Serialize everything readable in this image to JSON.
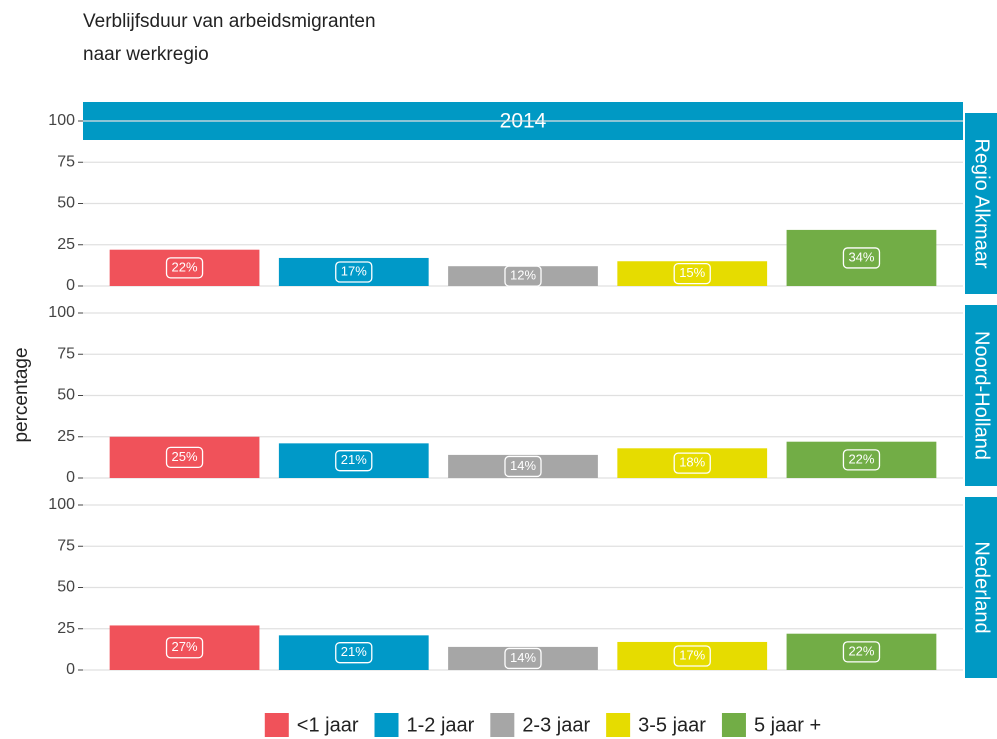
{
  "chart_data": {
    "type": "bar",
    "title": [
      "Verblijfsduur van arbeidsmigranten",
      "naar werkregio"
    ],
    "facet_title": "2014",
    "ylabel": "percentage",
    "categories": [
      "<1 jaar",
      "1-2 jaar",
      "2-3 jaar",
      "3-5 jaar",
      "5 jaar +"
    ],
    "colors": [
      "#f0525a",
      "#0099c8",
      "#a6a6a6",
      "#e6dc00",
      "#72ad46"
    ],
    "strip_color": "#0099c4",
    "ylim": [
      0,
      100
    ],
    "yticks": [
      0,
      25,
      50,
      75,
      100
    ],
    "grid": true,
    "legend": "bottom",
    "panels": [
      {
        "name": "Regio Alkmaar",
        "values": [
          22,
          17,
          12,
          15,
          34
        ],
        "value_labels": [
          "22%",
          "17%",
          "12%",
          "15%",
          "34%"
        ]
      },
      {
        "name": "Noord-Holland",
        "values": [
          25,
          21,
          14,
          18,
          22
        ],
        "value_labels": [
          "25%",
          "21%",
          "14%",
          "18%",
          "22%"
        ]
      },
      {
        "name": "Nederland",
        "values": [
          27,
          21,
          14,
          17,
          22
        ],
        "value_labels": [
          "27%",
          "21%",
          "14%",
          "17%",
          "22%"
        ]
      }
    ]
  }
}
